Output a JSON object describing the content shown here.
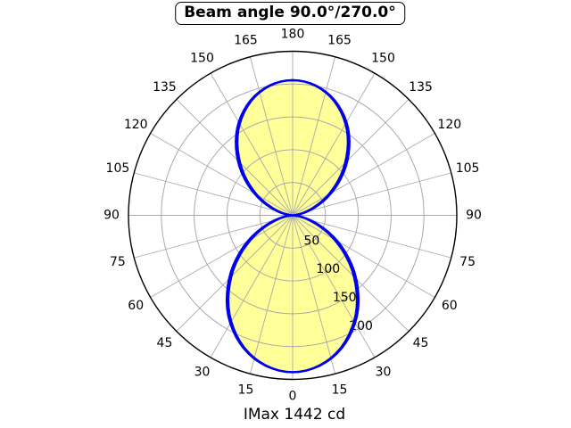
{
  "title": "Beam angle 90.0°/270.0°",
  "footer": "IMax 1442 cd",
  "imax_cd": 1442,
  "beam_angle_label": "90.0°/270.0°",
  "colors": {
    "curve": "#0000EE",
    "lobe_fill": "#FFFF99",
    "grid": "#AAAAAA",
    "outer_ring": "#000000",
    "text": "#000000",
    "background": "#FFFFFF"
  },
  "chart_data": {
    "type": "polar",
    "title": "Beam angle 90.0°/270.0°",
    "caption": "IMax 1442 cd",
    "r_max": 250,
    "radial_ticks": [
      50,
      100,
      150,
      200
    ],
    "angle_ticks_deg": [
      0,
      15,
      30,
      45,
      60,
      75,
      90,
      105,
      120,
      135,
      150,
      165,
      180
    ],
    "angle_step_deg": 15,
    "radial_label_angle_deg": 30,
    "symmetric_mirror": true,
    "grid": true,
    "legend_position": "none",
    "angles_deg": [
      0,
      15,
      30,
      45,
      60,
      75,
      90,
      105,
      120,
      135,
      150,
      165,
      180
    ],
    "series": [
      {
        "name": "curve-wide",
        "filled": false,
        "values": [
          239,
          226,
          190,
          137,
          79,
          27,
          0,
          24,
          68,
          118,
          164,
          195,
          206
        ]
      },
      {
        "name": "curve-narrow",
        "filled": true,
        "values": [
          239,
          225,
          187,
          132,
          73,
          23,
          0,
          20,
          63,
          113,
          161,
          194,
          206
        ]
      }
    ]
  }
}
